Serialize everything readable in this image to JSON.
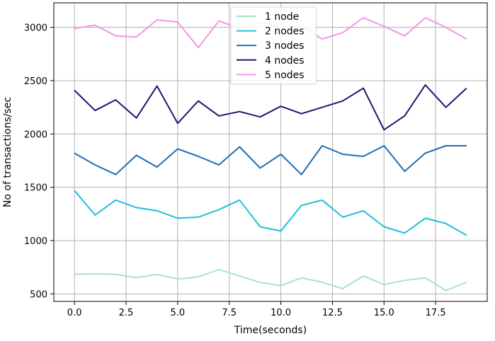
{
  "chart_data": {
    "type": "line",
    "title": "",
    "xlabel": "Time(seconds)",
    "ylabel": "No of transactions/sec",
    "xlim": [
      -1.0,
      20.0
    ],
    "ylim": [
      430,
      3230
    ],
    "xticks": [
      0.0,
      2.5,
      5.0,
      7.5,
      10.0,
      12.5,
      15.0,
      17.5
    ],
    "xtick_labels": [
      "0.0",
      "2.5",
      "5.0",
      "7.5",
      "10.0",
      "12.5",
      "15.0",
      "17.5"
    ],
    "yticks": [
      500,
      1000,
      1500,
      2000,
      2500,
      3000
    ],
    "ytick_labels": [
      "500",
      "1000",
      "1500",
      "2000",
      "2500",
      "3000"
    ],
    "grid": true,
    "legend_position": "top-center",
    "x": [
      0,
      1,
      2,
      3,
      4,
      5,
      6,
      7,
      8,
      9,
      10,
      11,
      12,
      13,
      14,
      15,
      16,
      17,
      18,
      19
    ],
    "series": [
      {
        "name": "1 node",
        "color": "#a6e3c9",
        "values": [
          685,
          688,
          683,
          652,
          683,
          640,
          660,
          728,
          668,
          607,
          578,
          650,
          610,
          550,
          668,
          588,
          627,
          650,
          532,
          610
        ]
      },
      {
        "name": "2 nodes",
        "color": "#1ec0d8",
        "values": [
          1470,
          1240,
          1380,
          1310,
          1280,
          1210,
          1220,
          1290,
          1380,
          1130,
          1090,
          1330,
          1380,
          1220,
          1280,
          1130,
          1070,
          1210,
          1160,
          1050
        ]
      },
      {
        "name": "3 nodes",
        "color": "#1f6db4",
        "values": [
          1820,
          1710,
          1620,
          1800,
          1690,
          1860,
          1790,
          1710,
          1880,
          1680,
          1810,
          1620,
          1890,
          1810,
          1790,
          1890,
          1650,
          1820,
          1890,
          1890
        ]
      },
      {
        "name": "4 nodes",
        "color": "#141a6e",
        "values": [
          2410,
          2220,
          2320,
          2150,
          2450,
          2100,
          2310,
          2170,
          2210,
          2160,
          2260,
          2190,
          2250,
          2310,
          2430,
          2040,
          2170,
          2460,
          2250,
          2430
        ]
      },
      {
        "name": "5 nodes",
        "color": "#f096e8",
        "values": [
          2990,
          3020,
          2920,
          2910,
          3070,
          3050,
          2810,
          3060,
          2990,
          3050,
          3000,
          3010,
          2890,
          2950,
          3090,
          3010,
          2920,
          3090,
          3000,
          2890
        ]
      }
    ]
  }
}
